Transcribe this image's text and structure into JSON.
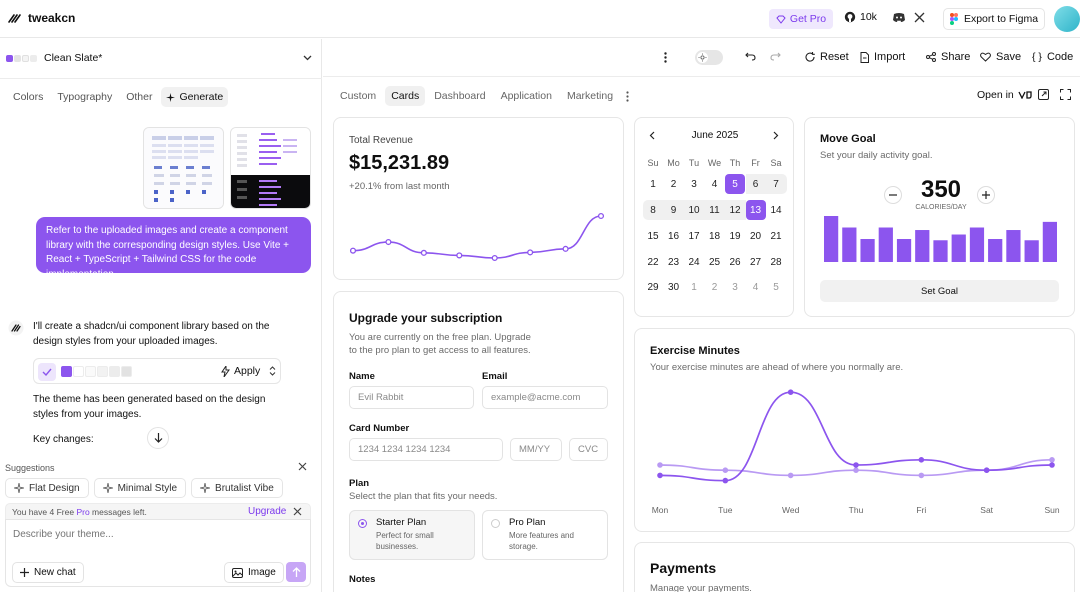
{
  "colors": {
    "accent": "#8c55ee",
    "accent_light": "#efe8fd",
    "border": "#e6e6e6",
    "muted": "#6b6b6b"
  },
  "topbar": {
    "brand": "tweakcn",
    "get_pro": "Get Pro",
    "github_stars": "10k",
    "export_figma": "Export to Figma"
  },
  "left": {
    "theme_name": "Clean Slate*",
    "tabs": [
      "Colors",
      "Typography",
      "Other",
      "Generate"
    ],
    "user_message": "Refer to the uploaded images and create a component library with the corresponding design styles. Use Vite + React + TypeScript + Tailwind CSS for the code implementation.",
    "bot_message": "I'll create a shadcn/ui component library based on the design styles from your uploaded images.",
    "apply_label": "Apply",
    "generated_message": "The theme has been generated based on the design styles from your images.",
    "key_changes": "Key changes:",
    "suggestions_label": "Suggestions",
    "suggestions": [
      "Flat Design",
      "Minimal Style",
      "Brutalist Vibe"
    ],
    "free_pro_prefix": "You have 4 Free ",
    "free_pro_word": "Pro",
    "free_pro_suffix": " messages left.",
    "upgrade": "Upgrade",
    "composer_placeholder": "Describe your theme...",
    "new_chat": "New chat",
    "image_btn": "Image"
  },
  "toolbar": {
    "reset": "Reset",
    "import": "Import",
    "share": "Share",
    "save": "Save",
    "code": "Code"
  },
  "preview_tabs": [
    "Custom",
    "Cards",
    "Dashboard",
    "Application",
    "Marketing"
  ],
  "open_in": "Open in",
  "revenue": {
    "label": "Total Revenue",
    "value": "$15,231.89",
    "change": "+20.1% from last month"
  },
  "subscription": {
    "title": "Upgrade your subscription",
    "desc": "You are currently on the free plan. Upgrade to the pro plan to get access to all features.",
    "name_label": "Name",
    "name_value": "Evil Rabbit",
    "email_label": "Email",
    "email_placeholder": "example@acme.com",
    "card_label": "Card Number",
    "card_placeholder": "1234 1234 1234 1234",
    "mmyy": "MM/YY",
    "cvc": "CVC",
    "plan_label": "Plan",
    "plan_desc": "Select the plan that fits your needs.",
    "starter_title": "Starter Plan",
    "starter_desc": "Perfect for small businesses.",
    "pro_title": "Pro Plan",
    "pro_desc": "More features and storage.",
    "notes_label": "Notes"
  },
  "calendar": {
    "month": "June 2025",
    "weekdays": [
      "Su",
      "Mo",
      "Tu",
      "We",
      "Th",
      "Fr",
      "Sa"
    ],
    "weeks": [
      [
        "1",
        "2",
        "3",
        "4",
        "5",
        "6",
        "7"
      ],
      [
        "8",
        "9",
        "10",
        "11",
        "12",
        "13",
        "14"
      ],
      [
        "15",
        "16",
        "17",
        "18",
        "19",
        "20",
        "21"
      ],
      [
        "22",
        "23",
        "24",
        "25",
        "26",
        "27",
        "28"
      ],
      [
        "29",
        "30",
        "1",
        "2",
        "3",
        "4",
        "5"
      ]
    ],
    "selected": [
      "5",
      "13"
    ],
    "range": [
      "6",
      "7",
      "8",
      "9",
      "10",
      "11",
      "12"
    ]
  },
  "move_goal": {
    "title": "Move Goal",
    "desc": "Set your daily activity goal.",
    "value": "350",
    "unit": "CALORIES/DAY",
    "button": "Set Goal",
    "bars": [
      400,
      300,
      200,
      300,
      200,
      278,
      189,
      239,
      300,
      200,
      278,
      189,
      349
    ]
  },
  "exercise": {
    "title": "Exercise Minutes",
    "desc": "Your exercise minutes are ahead of where you normally are.",
    "days": [
      "Mon",
      "Tue",
      "Wed",
      "Thu",
      "Fri",
      "Sat",
      "Sun"
    ]
  },
  "payments": {
    "title": "Payments",
    "desc": "Manage your payments."
  },
  "chart_data": [
    {
      "type": "line",
      "title": "Total Revenue",
      "values": [
        10400,
        14405,
        9400,
        8200,
        7000,
        9600,
        11244,
        26475
      ]
    },
    {
      "type": "bar",
      "title": "Move Goal",
      "values": [
        400,
        300,
        200,
        300,
        200,
        278,
        189,
        239,
        300,
        200,
        278,
        189,
        349
      ]
    },
    {
      "type": "line",
      "title": "Exercise Minutes",
      "categories": [
        "Mon",
        "Tue",
        "Wed",
        "Thu",
        "Fri",
        "Sat",
        "Sun"
      ],
      "series": [
        {
          "values": [
            130,
            120,
            290,
            150,
            160,
            140,
            150
          ]
        },
        {
          "values": [
            150,
            140,
            130,
            140,
            130,
            140,
            160
          ]
        }
      ]
    }
  ]
}
